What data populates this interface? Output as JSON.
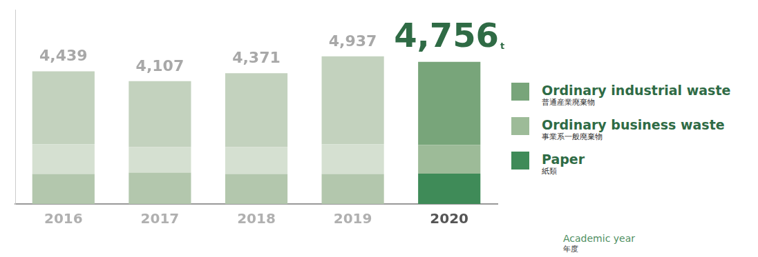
{
  "chart_data": {
    "type": "bar",
    "stacked": true,
    "categories": [
      "2016",
      "2017",
      "2018",
      "2019",
      "2020"
    ],
    "series": [
      {
        "name": "Ordinary industrial waste",
        "name_ja": "普通産業廃棄物",
        "color": "#78a57a",
        "colors": [
          "#c3d2be",
          "#c3d2be",
          "#c3d2be",
          "#c3d2be",
          "#78a57a"
        ],
        "values": [
          2439,
          2207,
          2471,
          2937,
          2780
        ]
      },
      {
        "name": "Ordinary business waste",
        "name_ja": "事業系一般廃棄物",
        "color": "#9dbb98",
        "colors": [
          "#d5e0d1",
          "#d5e0d1",
          "#d5e0d1",
          "#d5e0d1",
          "#9dbb98"
        ],
        "values": [
          1000,
          850,
          900,
          1000,
          960
        ]
      },
      {
        "name": "Paper",
        "name_ja": "紙類",
        "color": "#3f8b58",
        "colors": [
          "#b3c7ad",
          "#b3c7ad",
          "#b3c7ad",
          "#b3c7ad",
          "#3f8b58"
        ],
        "values": [
          1000,
          1050,
          1000,
          1000,
          1016
        ]
      }
    ],
    "totals": [
      4439,
      4107,
      4371,
      4937,
      4756
    ],
    "total_labels": [
      "4,439",
      "4,107",
      "4,371",
      "4,937",
      "4,756"
    ],
    "unit": "t",
    "x_label": "Academic year",
    "x_label_ja": "年度",
    "ylim": [
      0,
      6500
    ],
    "tick_labels": "x",
    "grid": false,
    "legend": "right"
  }
}
